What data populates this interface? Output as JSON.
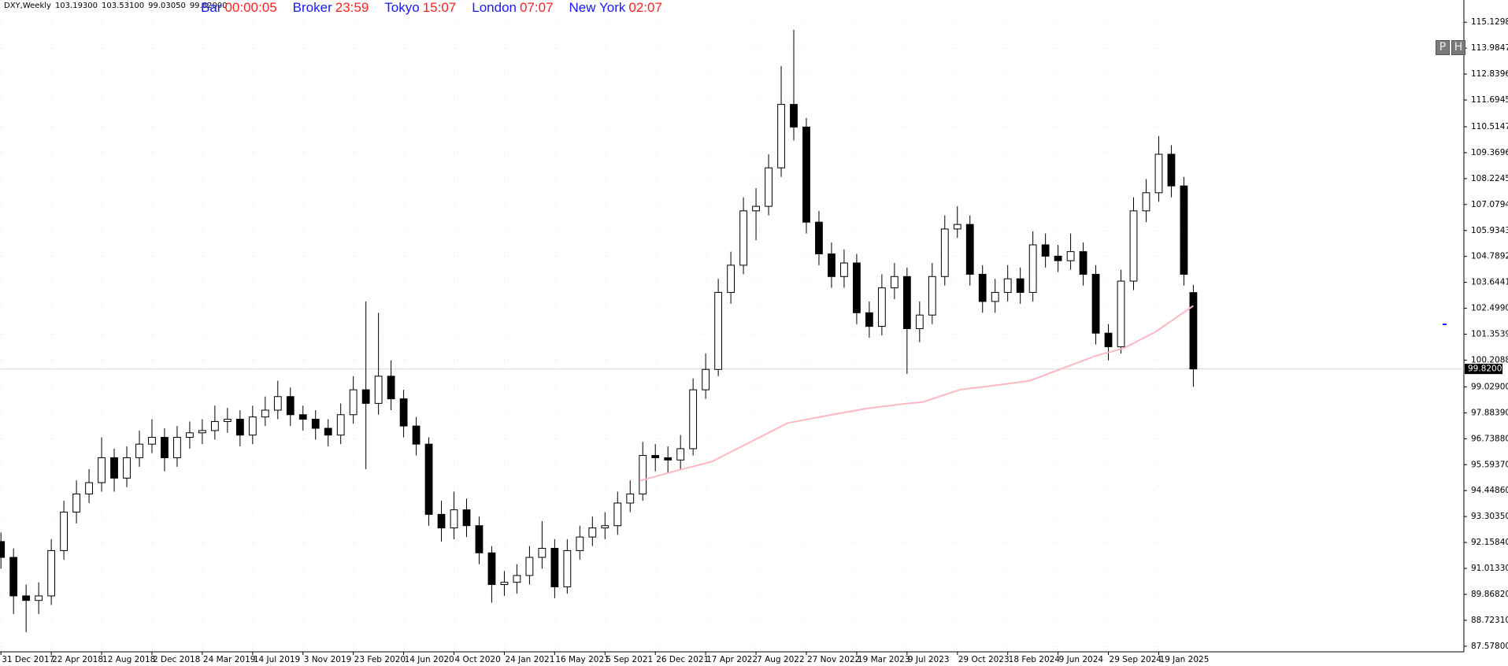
{
  "chart_data": {
    "type": "candlestick",
    "title": "DXY,Weekly",
    "ohlc_labels": [
      "103.19300",
      "103.53100",
      "99.03050",
      "99.82000"
    ],
    "xlim": [
      -0.3,
      465
    ],
    "ylim": [
      87.33,
      116.11
    ],
    "grid": true,
    "bull_color": "#ffffff",
    "bear_color": "#000000",
    "wick_color": "#000000",
    "xticks": [
      {
        "value": 0,
        "label": "31 Dec 2017"
      },
      {
        "value": 16,
        "label": "22 Apr 2018"
      },
      {
        "value": 32,
        "label": "12 Aug 2018"
      },
      {
        "value": 48,
        "label": "2 Dec 2018"
      },
      {
        "value": 64,
        "label": "24 Mar 2019"
      },
      {
        "value": 80,
        "label": "14 Jul 2019"
      },
      {
        "value": 96,
        "label": "3 Nov 2019"
      },
      {
        "value": 112,
        "label": "23 Feb 2020"
      },
      {
        "value": 128,
        "label": "14 Jun 2020"
      },
      {
        "value": 144,
        "label": "4 Oct 2020"
      },
      {
        "value": 160,
        "label": "24 Jan 2021"
      },
      {
        "value": 176,
        "label": "16 May 2021"
      },
      {
        "value": 192,
        "label": "5 Sep 2021"
      },
      {
        "value": 208,
        "label": "26 Dec 2021"
      },
      {
        "value": 224,
        "label": "17 Apr 2022"
      },
      {
        "value": 240,
        "label": "7 Aug 2022"
      },
      {
        "value": 256,
        "label": "27 Nov 2022"
      },
      {
        "value": 272,
        "label": "19 Mar 2023"
      },
      {
        "value": 288,
        "label": "9 Jul 2023"
      },
      {
        "value": 304,
        "label": "29 Oct 2023"
      },
      {
        "value": 320,
        "label": "18 Feb 2024"
      },
      {
        "value": 336,
        "label": "9 Jun 2024"
      },
      {
        "value": 352,
        "label": "29 Sep 2024"
      },
      {
        "value": 368,
        "label": "19 Jan 2025"
      }
    ],
    "yticks": [
      {
        "value": 115.1298,
        "label": "115.12980"
      },
      {
        "value": 113.9847,
        "label": "113.98470"
      },
      {
        "value": 112.8396,
        "label": "112.83960"
      },
      {
        "value": 111.6945,
        "label": "111.69450"
      },
      {
        "value": 110.5147,
        "label": "110.51470"
      },
      {
        "value": 109.3696,
        "label": "109.36960"
      },
      {
        "value": 108.2245,
        "label": "108.22450"
      },
      {
        "value": 107.0794,
        "label": "107.07940"
      },
      {
        "value": 105.9343,
        "label": "105.93430"
      },
      {
        "value": 104.7892,
        "label": "104.78920"
      },
      {
        "value": 103.6441,
        "label": "103.64410"
      },
      {
        "value": 102.499,
        "label": "102.49900"
      },
      {
        "value": 101.3539,
        "label": "101.35390"
      },
      {
        "value": 100.2088,
        "label": "100.20880"
      },
      {
        "value": 99.029,
        "label": "99.02900"
      },
      {
        "value": 97.8839,
        "label": "97.88390"
      },
      {
        "value": 96.7388,
        "label": "96.73880"
      },
      {
        "value": 95.5937,
        "label": "95.59370"
      },
      {
        "value": 94.4486,
        "label": "94.44860"
      },
      {
        "value": 93.3035,
        "label": "93.30350"
      },
      {
        "value": 92.1584,
        "label": "92.15840"
      },
      {
        "value": 91.0133,
        "label": "91.01330"
      },
      {
        "value": 89.8682,
        "label": "89.86820"
      },
      {
        "value": 88.7231,
        "label": "88.72310"
      },
      {
        "value": 87.578,
        "label": "87.57800"
      }
    ],
    "last_price": {
      "value": 99.82,
      "label": "99.82000"
    },
    "candles": {
      "x": [
        0,
        4,
        8,
        12,
        16,
        20,
        24,
        28,
        32,
        36,
        40,
        44,
        48,
        52,
        56,
        60,
        64,
        68,
        72,
        76,
        80,
        84,
        88,
        92,
        96,
        100,
        104,
        108,
        112,
        116,
        120,
        124,
        128,
        132,
        136,
        140,
        144,
        148,
        152,
        156,
        160,
        164,
        168,
        172,
        176,
        180,
        184,
        188,
        192,
        196,
        200,
        204,
        208,
        212,
        216,
        220,
        224,
        228,
        232,
        236,
        240,
        244,
        248,
        252,
        256,
        260,
        264,
        268,
        272,
        276,
        280,
        284,
        288,
        292,
        296,
        300,
        304,
        308,
        312,
        316,
        320,
        324,
        328,
        332,
        336,
        340,
        344,
        348,
        352,
        356,
        360,
        364,
        368,
        372,
        376,
        379
      ],
      "open": [
        92.2,
        91.5,
        89.8,
        89.6,
        89.8,
        91.8,
        93.5,
        94.3,
        94.8,
        95.9,
        95.0,
        95.9,
        96.5,
        96.8,
        95.9,
        96.8,
        97.0,
        97.1,
        97.5,
        97.6,
        96.9,
        97.7,
        98.0,
        98.6,
        97.8,
        97.6,
        97.2,
        96.9,
        97.8,
        98.9,
        98.3,
        99.5,
        98.5,
        97.3,
        96.5,
        93.4,
        92.8,
        93.6,
        92.9,
        91.7,
        90.3,
        90.4,
        90.7,
        91.5,
        91.9,
        90.2,
        91.8,
        92.4,
        92.8,
        92.9,
        93.9,
        94.3,
        96.0,
        95.9,
        95.8,
        96.3,
        98.9,
        99.8,
        103.2,
        104.4,
        106.8,
        107.0,
        108.7,
        111.5,
        110.5,
        106.3,
        104.9,
        103.9,
        104.5,
        102.3,
        101.7,
        103.4,
        103.9,
        101.6,
        102.2,
        103.9,
        106.0,
        106.2,
        104.0,
        102.8,
        103.2,
        103.8,
        103.2,
        105.3,
        104.8,
        104.6,
        105.0,
        104.0,
        101.4,
        100.8,
        103.7,
        106.8,
        107.6,
        109.3,
        107.9,
        103.193
      ],
      "high": [
        92.6,
        91.9,
        90.3,
        90.4,
        92.3,
        94.0,
        94.9,
        95.4,
        96.8,
        96.3,
        96.4,
        97.1,
        97.6,
        97.2,
        97.3,
        97.5,
        97.6,
        98.2,
        98.1,
        98.0,
        98.2,
        98.6,
        99.3,
        99.0,
        98.2,
        98.0,
        97.6,
        98.3,
        99.5,
        102.8,
        102.3,
        100.2,
        98.9,
        97.7,
        96.8,
        94.0,
        94.4,
        94.1,
        93.3,
        92.0,
        90.9,
        91.2,
        92.0,
        93.1,
        92.3,
        92.3,
        92.9,
        93.3,
        93.5,
        94.4,
        94.9,
        96.6,
        96.5,
        96.4,
        96.9,
        99.4,
        100.5,
        103.8,
        105.0,
        107.4,
        107.8,
        109.3,
        113.2,
        114.8,
        110.9,
        106.8,
        105.4,
        105.1,
        104.9,
        102.8,
        104.0,
        104.5,
        104.3,
        102.8,
        104.5,
        106.6,
        107.0,
        106.6,
        104.4,
        103.8,
        104.4,
        104.3,
        105.9,
        105.8,
        105.3,
        105.8,
        105.4,
        104.4,
        101.8,
        104.2,
        107.4,
        108.2,
        110.1,
        109.7,
        108.3,
        103.531
      ],
      "low": [
        91.0,
        89.0,
        88.2,
        89.0,
        89.4,
        91.4,
        93.0,
        93.9,
        94.4,
        94.4,
        94.6,
        95.5,
        96.1,
        95.3,
        95.5,
        96.3,
        96.5,
        96.7,
        97.0,
        96.4,
        96.5,
        97.3,
        97.6,
        97.3,
        97.1,
        96.7,
        96.4,
        96.5,
        97.4,
        95.4,
        97.8,
        98.0,
        96.8,
        96.0,
        92.9,
        92.2,
        92.3,
        92.4,
        91.2,
        89.5,
        89.8,
        89.9,
        90.3,
        91.0,
        89.7,
        89.9,
        91.4,
        92.0,
        92.3,
        92.5,
        93.5,
        94.0,
        95.3,
        95.2,
        95.4,
        96.0,
        98.5,
        99.5,
        102.7,
        104.0,
        105.5,
        106.6,
        108.3,
        109.9,
        105.8,
        104.4,
        103.4,
        103.4,
        101.8,
        101.2,
        101.3,
        102.9,
        99.6,
        101.0,
        101.8,
        103.5,
        105.6,
        103.5,
        102.3,
        102.3,
        102.8,
        102.7,
        102.8,
        104.3,
        104.1,
        104.2,
        103.5,
        100.9,
        100.2,
        100.5,
        103.3,
        106.3,
        107.2,
        107.4,
        103.5,
        99.0305
      ],
      "close": [
        91.5,
        89.8,
        89.6,
        89.8,
        91.8,
        93.5,
        94.3,
        94.8,
        95.9,
        95.0,
        95.9,
        96.5,
        96.8,
        95.9,
        96.8,
        97.0,
        97.1,
        97.5,
        97.6,
        96.9,
        97.7,
        98.0,
        98.6,
        97.8,
        97.6,
        97.2,
        96.9,
        97.8,
        98.9,
        98.3,
        99.5,
        98.5,
        97.3,
        96.5,
        93.4,
        92.8,
        93.6,
        92.9,
        91.7,
        90.3,
        90.4,
        90.7,
        91.5,
        91.9,
        90.2,
        91.8,
        92.4,
        92.8,
        92.9,
        93.9,
        94.3,
        96.0,
        95.9,
        95.8,
        96.3,
        98.9,
        99.8,
        103.2,
        104.4,
        106.8,
        107.0,
        108.7,
        111.5,
        110.5,
        106.3,
        104.9,
        103.9,
        104.5,
        102.3,
        101.7,
        103.4,
        103.9,
        101.6,
        102.2,
        103.9,
        106.0,
        106.2,
        104.0,
        102.8,
        103.2,
        103.8,
        103.2,
        105.3,
        104.8,
        104.6,
        105.0,
        104.0,
        101.4,
        100.8,
        103.7,
        106.8,
        107.6,
        109.3,
        107.9,
        104.0,
        99.82
      ]
    },
    "ma": {
      "color": "#ffb6c1",
      "x": [
        203,
        214,
        226,
        238,
        250,
        263,
        275,
        287,
        293,
        305,
        318,
        327,
        336,
        348,
        357,
        367,
        379
      ],
      "values": [
        94.88,
        95.3,
        95.73,
        96.58,
        97.43,
        97.77,
        98.07,
        98.28,
        98.36,
        98.91,
        99.13,
        99.3,
        99.77,
        100.4,
        100.74,
        101.46,
        102.61
      ]
    }
  },
  "header": {
    "clocks": [
      {
        "label": "Bar",
        "time": "00:00:05"
      },
      {
        "label": "Broker",
        "time": "23:59"
      },
      {
        "label": "Tokyo",
        "time": "15:07"
      },
      {
        "label": "London",
        "time": "07:07"
      },
      {
        "label": "New York",
        "time": "02:07"
      }
    ],
    "buttons": [
      "P",
      "H"
    ]
  }
}
